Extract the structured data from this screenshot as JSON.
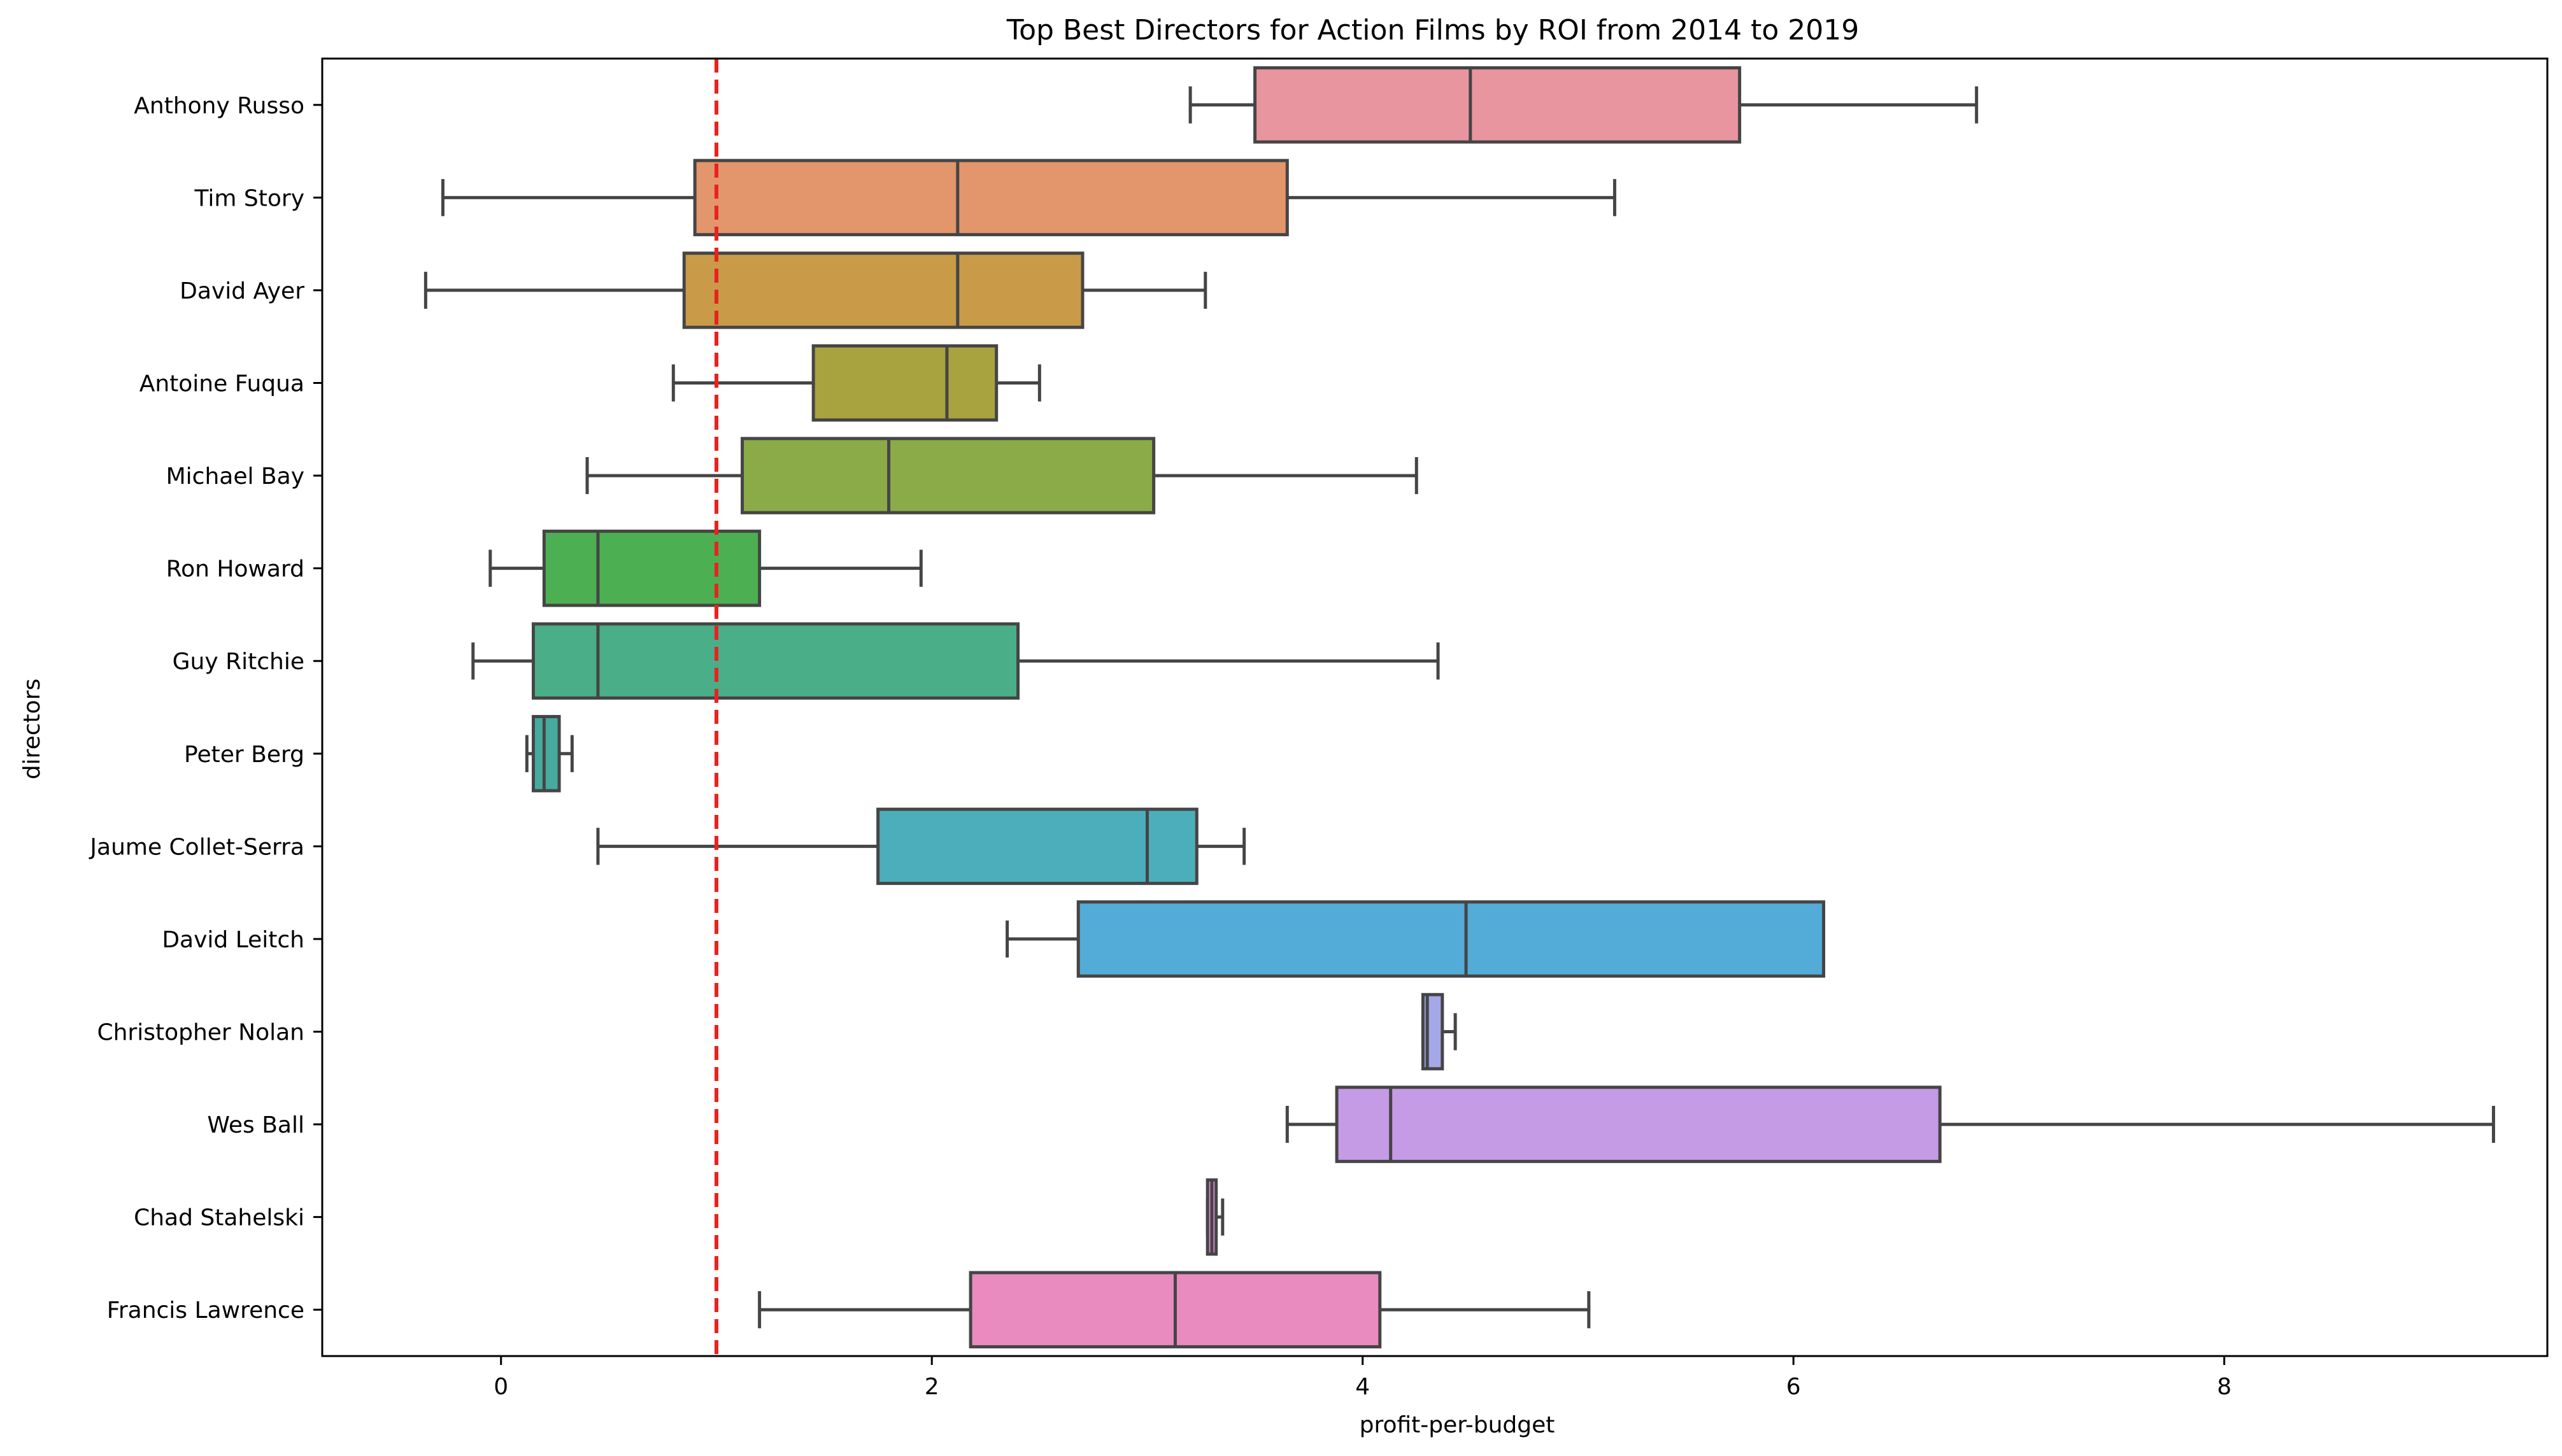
{
  "chart_data": {
    "type": "box",
    "orientation": "horizontal",
    "title": "Top Best Directors for Action Films by ROI from 2014 to 2019",
    "xlabel": "profit-per-budget",
    "ylabel": "directors",
    "xlim": [
      -0.83,
      9.5
    ],
    "xticks": [
      0,
      2,
      4,
      6,
      8
    ],
    "xtick_labels": [
      "0",
      "2",
      "4",
      "6",
      "8"
    ],
    "grid": false,
    "reference_line": {
      "x": 1.0,
      "style": "dashed",
      "color": "#e8221f"
    },
    "box_edge_color": "#454545",
    "categories": [
      "Anthony Russo",
      "Tim Story",
      "David Ayer",
      "Antoine Fuqua",
      "Michael Bay",
      "Ron Howard",
      "Guy Ritchie",
      "Peter Berg",
      "Jaume Collet-Serra",
      "David Leitch",
      "Christopher Nolan",
      "Wes Ball",
      "Chad Stahelski",
      "Francis Lawrence"
    ],
    "boxes": [
      {
        "name": "Anthony Russo",
        "whisker_low": 3.2,
        "q1": 3.5,
        "median": 4.5,
        "q3": 5.75,
        "whisker_high": 6.85,
        "color": "#e9959f"
      },
      {
        "name": "Tim Story",
        "whisker_low": -0.27,
        "q1": 0.9,
        "median": 2.12,
        "q3": 3.65,
        "whisker_high": 5.17,
        "color": "#e3956b"
      },
      {
        "name": "David Ayer",
        "whisker_low": -0.35,
        "q1": 0.85,
        "median": 2.12,
        "q3": 2.7,
        "whisker_high": 3.27,
        "color": "#c99a48"
      },
      {
        "name": "Antoine Fuqua",
        "whisker_low": 0.8,
        "q1": 1.45,
        "median": 2.07,
        "q3": 2.3,
        "whisker_high": 2.5,
        "color": "#a8a23f"
      },
      {
        "name": "Michael Bay",
        "whisker_low": 0.4,
        "q1": 1.12,
        "median": 1.8,
        "q3": 3.03,
        "whisker_high": 4.25,
        "color": "#8aab47"
      },
      {
        "name": "Ron Howard",
        "whisker_low": -0.05,
        "q1": 0.2,
        "median": 0.45,
        "q3": 1.2,
        "whisker_high": 1.95,
        "color": "#4cb052"
      },
      {
        "name": "Guy Ritchie",
        "whisker_low": -0.13,
        "q1": 0.15,
        "median": 0.45,
        "q3": 2.4,
        "whisker_high": 4.35,
        "color": "#4aae89"
      },
      {
        "name": "Peter Berg",
        "whisker_low": 0.12,
        "q1": 0.15,
        "median": 0.2,
        "q3": 0.27,
        "whisker_high": 0.33,
        "color": "#47aa9f"
      },
      {
        "name": "Jaume Collet-Serra",
        "whisker_low": 0.45,
        "q1": 1.75,
        "median": 3.0,
        "q3": 3.23,
        "whisker_high": 3.45,
        "color": "#4caeba"
      },
      {
        "name": "David Leitch",
        "whisker_low": 2.35,
        "q1": 2.68,
        "median": 4.48,
        "q3": 6.14,
        "whisker_high": 6.14,
        "color": "#53abd7"
      },
      {
        "name": "Christopher Nolan",
        "whisker_low": 4.28,
        "q1": 4.28,
        "median": 4.3,
        "q3": 4.37,
        "whisker_high": 4.43,
        "color": "#a4a8e6"
      },
      {
        "name": "Wes Ball",
        "whisker_low": 3.65,
        "q1": 3.88,
        "median": 4.13,
        "q3": 6.68,
        "whisker_high": 9.25,
        "color": "#c69be6"
      },
      {
        "name": "Chad Stahelski",
        "whisker_low": 3.28,
        "q1": 3.28,
        "median": 3.3,
        "q3": 3.32,
        "whisker_high": 3.35,
        "color": "#df8ad6"
      },
      {
        "name": "Francis Lawrence",
        "whisker_low": 1.2,
        "q1": 2.18,
        "median": 3.13,
        "q3": 4.08,
        "whisker_high": 5.05,
        "color": "#ea8bbf"
      }
    ]
  }
}
